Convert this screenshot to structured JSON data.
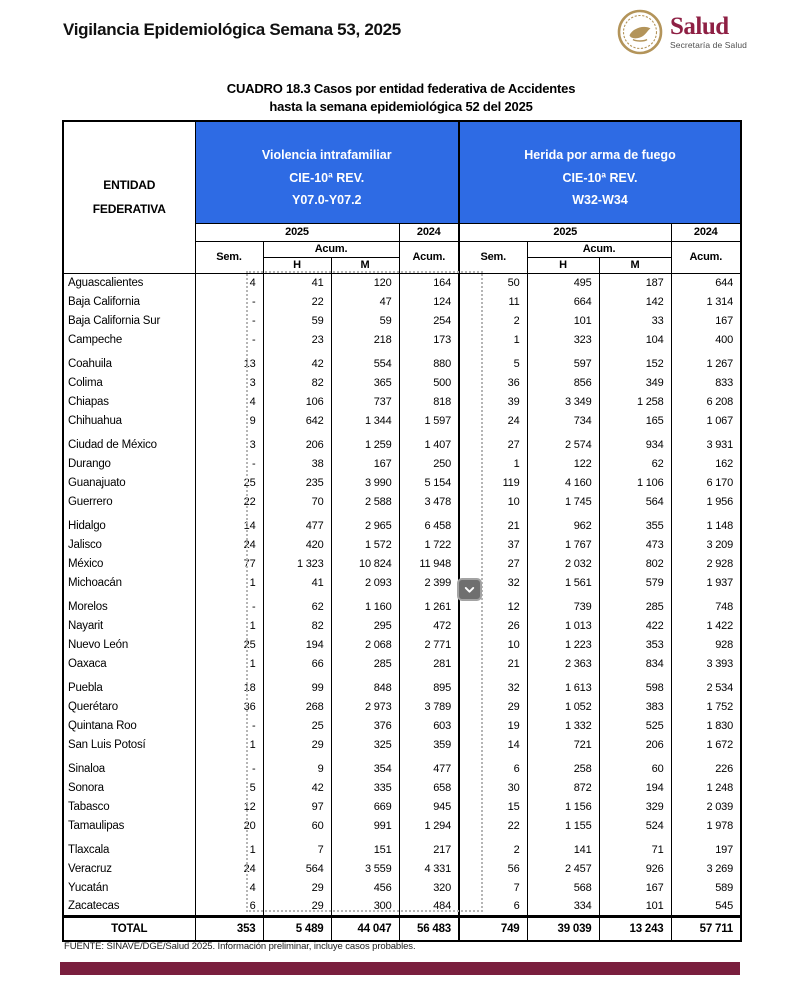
{
  "page": {
    "header_title": "Vigilancia Epidemiológica Semana 53, 2025",
    "logo": {
      "wordmark": "Salud",
      "subtitle": "Secretaría de Salud"
    },
    "title_line1": "CUADRO 18.3  Casos por entidad federativa de Accidentes",
    "title_line2": "hasta la semana epidemiológica 52 del 2025",
    "footnote": "FUENTE: SINAVE/DGE/Salud 2025. Información preliminar, incluye casos probables."
  },
  "colors": {
    "section_header_bg": "#2e6be4",
    "section_header_edge": "#12337e",
    "accent_bar": "#7a1f3e",
    "wordmark": "#8e2044",
    "seal_gold": "#b3945a",
    "selection_dash": "#b5b5b5",
    "scroll_button_bg": "#6f6f6f"
  },
  "icons": {
    "seal": "gobierno-seal-icon",
    "scroll": "chevron-down-icon"
  },
  "table": {
    "entity_header_line1": "ENTIDAD",
    "entity_header_line2": "FEDERATIVA",
    "sections": [
      {
        "title_line1": "Violencia intrafamiliar",
        "title_line2": "CIE-10ª REV.",
        "title_line3": "Y07.0-Y07.2"
      },
      {
        "title_line1": "Herida por arma de fuego",
        "title_line2": "CIE-10ª REV.",
        "title_line3": "W32-W34"
      }
    ],
    "year_current": "2025",
    "year_previous": "2024",
    "subheaders": {
      "sem": "Sem.",
      "acum": "Acum.",
      "h": "H",
      "m": "M"
    },
    "rows": [
      {
        "entity": "Aguascalientes",
        "values": [
          "4",
          "41",
          "120",
          "164",
          "50",
          "495",
          "187",
          "644"
        ]
      },
      {
        "entity": "Baja California",
        "values": [
          "-",
          "22",
          "47",
          "124",
          "11",
          "664",
          "142",
          "1 314"
        ]
      },
      {
        "entity": "Baja California Sur",
        "values": [
          "-",
          "59",
          "59",
          "254",
          "2",
          "101",
          "33",
          "167"
        ]
      },
      {
        "entity": "Campeche",
        "values": [
          "-",
          "23",
          "218",
          "173",
          "1",
          "323",
          "104",
          "400"
        ]
      },
      {
        "entity": "Coahuila",
        "values": [
          "13",
          "42",
          "554",
          "880",
          "5",
          "597",
          "152",
          "1 267"
        ]
      },
      {
        "entity": "Colima",
        "values": [
          "3",
          "82",
          "365",
          "500",
          "36",
          "856",
          "349",
          "833"
        ]
      },
      {
        "entity": "Chiapas",
        "values": [
          "4",
          "106",
          "737",
          "818",
          "39",
          "3 349",
          "1 258",
          "6 208"
        ]
      },
      {
        "entity": "Chihuahua",
        "values": [
          "9",
          "642",
          "1 344",
          "1 597",
          "24",
          "734",
          "165",
          "1 067"
        ]
      },
      {
        "entity": "Ciudad de México",
        "values": [
          "3",
          "206",
          "1 259",
          "1 407",
          "27",
          "2 574",
          "934",
          "3 931"
        ]
      },
      {
        "entity": "Durango",
        "values": [
          "-",
          "38",
          "167",
          "250",
          "1",
          "122",
          "62",
          "162"
        ]
      },
      {
        "entity": "Guanajuato",
        "values": [
          "25",
          "235",
          "3 990",
          "5 154",
          "119",
          "4 160",
          "1 106",
          "6 170"
        ]
      },
      {
        "entity": "Guerrero",
        "values": [
          "22",
          "70",
          "2 588",
          "3 478",
          "10",
          "1 745",
          "564",
          "1 956"
        ]
      },
      {
        "entity": "Hidalgo",
        "values": [
          "14",
          "477",
          "2 965",
          "6 458",
          "21",
          "962",
          "355",
          "1 148"
        ]
      },
      {
        "entity": "Jalisco",
        "values": [
          "24",
          "420",
          "1 572",
          "1 722",
          "37",
          "1 767",
          "473",
          "3 209"
        ]
      },
      {
        "entity": "México",
        "values": [
          "77",
          "1 323",
          "10 824",
          "11 948",
          "27",
          "2 032",
          "802",
          "2 928"
        ]
      },
      {
        "entity": "Michoacán",
        "values": [
          "1",
          "41",
          "2 093",
          "2 399",
          "32",
          "1 561",
          "579",
          "1 937"
        ]
      },
      {
        "entity": "Morelos",
        "values": [
          "-",
          "62",
          "1 160",
          "1 261",
          "12",
          "739",
          "285",
          "748"
        ]
      },
      {
        "entity": "Nayarit",
        "values": [
          "1",
          "82",
          "295",
          "472",
          "26",
          "1 013",
          "422",
          "1 422"
        ]
      },
      {
        "entity": "Nuevo León",
        "values": [
          "25",
          "194",
          "2 068",
          "2 771",
          "10",
          "1 223",
          "353",
          "928"
        ]
      },
      {
        "entity": "Oaxaca",
        "values": [
          "1",
          "66",
          "285",
          "281",
          "21",
          "2 363",
          "834",
          "3 393"
        ]
      },
      {
        "entity": "Puebla",
        "values": [
          "18",
          "99",
          "848",
          "895",
          "32",
          "1 613",
          "598",
          "2 534"
        ]
      },
      {
        "entity": "Querétaro",
        "values": [
          "36",
          "268",
          "2 973",
          "3 789",
          "29",
          "1 052",
          "383",
          "1 752"
        ]
      },
      {
        "entity": "Quintana Roo",
        "values": [
          "-",
          "25",
          "376",
          "603",
          "19",
          "1 332",
          "525",
          "1 830"
        ]
      },
      {
        "entity": "San Luis Potosí",
        "values": [
          "1",
          "29",
          "325",
          "359",
          "14",
          "721",
          "206",
          "1 672"
        ]
      },
      {
        "entity": "Sinaloa",
        "values": [
          "-",
          "9",
          "354",
          "477",
          "6",
          "258",
          "60",
          "226"
        ]
      },
      {
        "entity": "Sonora",
        "values": [
          "5",
          "42",
          "335",
          "658",
          "30",
          "872",
          "194",
          "1 248"
        ]
      },
      {
        "entity": "Tabasco",
        "values": [
          "12",
          "97",
          "669",
          "945",
          "15",
          "1 156",
          "329",
          "2 039"
        ]
      },
      {
        "entity": "Tamaulipas",
        "values": [
          "20",
          "60",
          "991",
          "1 294",
          "22",
          "1 155",
          "524",
          "1 978"
        ]
      },
      {
        "entity": "Tlaxcala",
        "values": [
          "1",
          "7",
          "151",
          "217",
          "2",
          "141",
          "71",
          "197"
        ]
      },
      {
        "entity": "Veracruz",
        "values": [
          "24",
          "564",
          "3 559",
          "4 331",
          "56",
          "2 457",
          "926",
          "3 269"
        ]
      },
      {
        "entity": "Yucatán",
        "values": [
          "4",
          "29",
          "456",
          "320",
          "7",
          "568",
          "167",
          "589"
        ]
      },
      {
        "entity": "Zacatecas",
        "values": [
          "6",
          "29",
          "300",
          "484",
          "6",
          "334",
          "101",
          "545"
        ]
      }
    ],
    "total": {
      "label": "TOTAL",
      "values": [
        "353",
        "5 489",
        "44 047",
        "56 483",
        "749",
        "39 039",
        "13 243",
        "57 711"
      ]
    }
  }
}
